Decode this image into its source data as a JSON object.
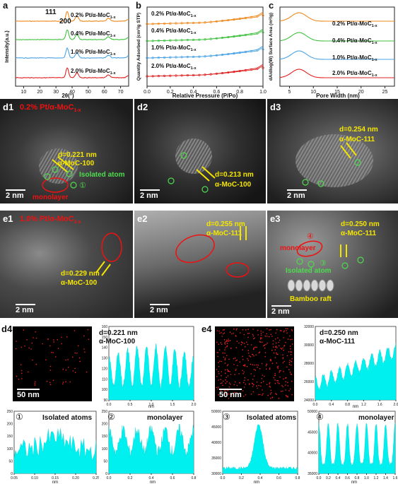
{
  "panels": {
    "a": {
      "label": "a",
      "xlabel": "2θ(°)",
      "ylabel": "Intensity(a.u.)",
      "peaks": [
        "111",
        "200"
      ],
      "series": [
        "0.2% Pt/α-MoC",
        "0.4% Pt/α-MoC",
        "1.0% Pt/α-MoC",
        "2.0% Pt/α-MoC"
      ],
      "sub": "1-x",
      "xticks": [
        "10",
        "20",
        "30",
        "40",
        "50",
        "60",
        "70"
      ]
    },
    "b": {
      "label": "b",
      "xlabel": "Relative Pressure (P/Po)",
      "ylabel": "Quantity Adsorbed (cm³/g STP)",
      "series": [
        "0.2% Pt/α-MoC",
        "0.4% Pt/α-MoC",
        "1.0% Pt/α-MoC",
        "2.0% Pt/α-MoC"
      ],
      "sub": "1-x",
      "xticks": [
        "0.0",
        "0.2",
        "0.4",
        "0.6",
        "0.8",
        "1.0"
      ]
    },
    "c": {
      "label": "c",
      "xlabel": "Pore Width (nm)",
      "ylabel": "dA/dlog(W) Surface Area (m²/g)",
      "series": [
        "0.2% Pt/α-MoC",
        "0.4% Pt/α-MoC",
        "1.0% Pt/α-MoC",
        "2.0% Pt/α-MoC"
      ],
      "sub": "1-x",
      "xticks": [
        "5",
        "10",
        "15",
        "20",
        "25"
      ]
    },
    "d1": {
      "label": "d1",
      "title": "0.2% Pt/α-MoC",
      "sub": "1-x",
      "d": "d=0.221 nm",
      "plane": "α-MoC-100",
      "iso": "Isolated atom",
      "mono": "monolayer",
      "scale": "2 nm",
      "marker": "①"
    },
    "d2": {
      "label": "d2",
      "d": "d=0.213 nm",
      "plane": "α-MoC-100",
      "scale": "2 nm"
    },
    "d3": {
      "label": "d3",
      "d": "d=0.254 nm",
      "plane": "α-MoC-111",
      "scale": "2 nm"
    },
    "e1": {
      "label": "e1",
      "title": "1.0% Pt/α-MoC",
      "sub": "1-x",
      "d": "d=0.229 nm",
      "plane": "α-MoC-100",
      "scale": "2 nm"
    },
    "e2": {
      "label": "e2",
      "d": "d=0.255 nm",
      "plane": "α-MoC-111",
      "scale": "2 nm"
    },
    "e3": {
      "label": "e3",
      "d": "d=0.250 nm",
      "plane": "α-MoC-111",
      "mono": "monolayer",
      "iso": "Isolated atom",
      "raft": "Bamboo raft",
      "scale": "2 nm",
      "m4": "④",
      "m3": "③"
    },
    "d4": {
      "label": "d4",
      "scale": "50 nm",
      "d": "d=0.221 nm",
      "plane": "α-MoC-100",
      "xlabel": "nm",
      "xticks": [
        "0.0",
        "0.5",
        "1.0",
        "1.5",
        "2.0"
      ],
      "yticks": [
        "90",
        "100",
        "110",
        "120",
        "130",
        "140",
        "150",
        "160"
      ]
    },
    "e4": {
      "label": "e4",
      "scale": "50 nm",
      "d": "d=0.250 nm",
      "plane": "α-MoC-111",
      "xlabel": "nm",
      "xticks": [
        "0.0",
        "0.4",
        "0.8",
        "1.2",
        "1.6",
        "2.0"
      ],
      "yticks": [
        "24000",
        "26000",
        "28000",
        "30000",
        "32000"
      ]
    },
    "p1": {
      "marker": "①",
      "title": "Isolated atoms",
      "xlabel": "nm",
      "xticks": [
        "0.05",
        "0.10",
        "0.15",
        "0.20",
        "0.25"
      ],
      "yticks": [
        "0",
        "50",
        "100",
        "150",
        "200",
        "250"
      ]
    },
    "p2": {
      "marker": "②",
      "title": "monolayer",
      "xlabel": "nm",
      "xticks": [
        "0.0",
        "0.2",
        "0.4",
        "0.6",
        "0.8"
      ],
      "yticks": [
        "0",
        "50",
        "100",
        "150",
        "200",
        "250"
      ]
    },
    "p3": {
      "marker": "③",
      "title": "Isolated atoms",
      "xlabel": "nm",
      "xticks": [
        "0.0",
        "0.2",
        "0.4",
        "0.6",
        "0.8"
      ],
      "yticks": [
        "30000",
        "35000",
        "40000",
        "45000",
        "50000"
      ]
    },
    "p4": {
      "marker": "④",
      "title": "monolayer",
      "xlabel": "nm",
      "xticks": [
        "0.0",
        "0.2",
        "0.4",
        "0.6",
        "0.8",
        "1.0",
        "1.2",
        "1.4",
        "1.6"
      ],
      "yticks": [
        "35000",
        "40000",
        "45000",
        "50000"
      ]
    }
  },
  "colors": {
    "s02": "#f0891e",
    "s04": "#3fc23f",
    "s10": "#49a3e6",
    "s20": "#e02020",
    "cyan": "#00f0f0",
    "red": "#e11111",
    "yellow": "#f5e600",
    "green": "#4ddc4d"
  }
}
